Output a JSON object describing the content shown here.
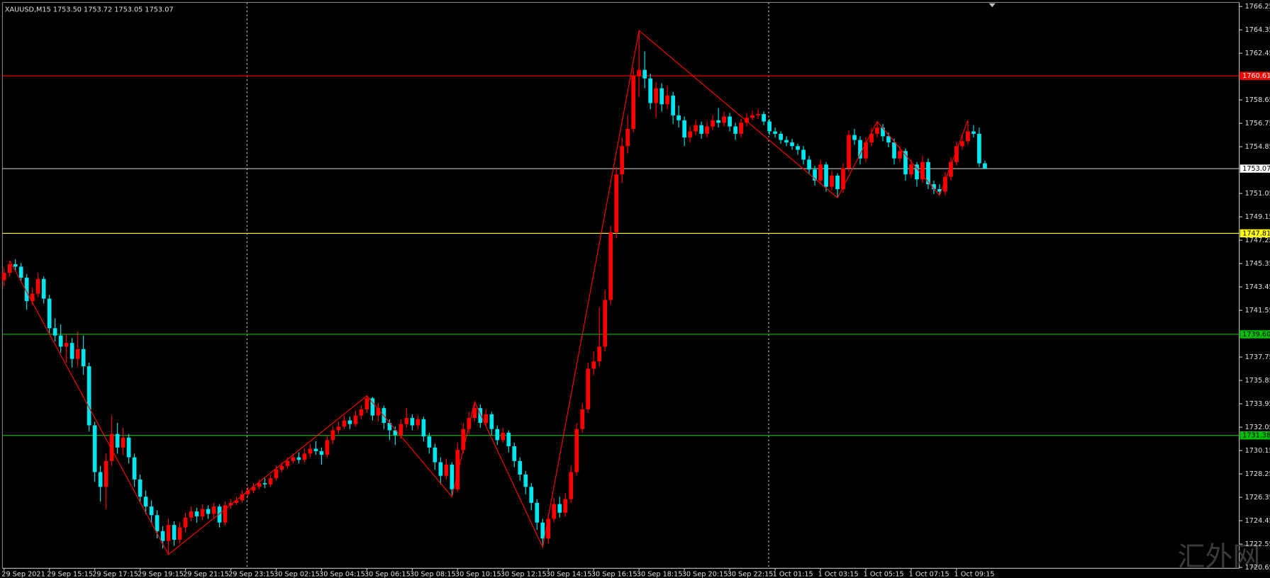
{
  "chart_data": {
    "type": "candlestick",
    "title": "XAUUSD,M15 1753.50 1753.72 1753.05 1753.07",
    "watermark": "汇外网",
    "up_color": "#ff0000",
    "down_color": "#00e5ee",
    "ylim": [
      1720.58,
      1766.58
    ],
    "yticks": [
      1766.25,
      1764.35,
      1762.45,
      1758.65,
      1756.75,
      1754.85,
      1751.05,
      1749.15,
      1747.25,
      1745.35,
      1743.45,
      1741.55,
      1737.75,
      1735.85,
      1733.95,
      1732.05,
      1730.15,
      1728.25,
      1726.35,
      1724.45,
      1722.55,
      1720.65
    ],
    "grid": false,
    "hlines": [
      {
        "value": 1760.61,
        "color": "#ff0000",
        "text_color": "#ffffff"
      },
      {
        "value": 1753.07,
        "color": "#ffffff",
        "text_color": "#000000"
      },
      {
        "value": 1747.81,
        "color": "#ffff00",
        "text_color": "#000000"
      },
      {
        "value": 1739.6,
        "label": "1739.60",
        "color": "#00c000",
        "text_color": "#000000"
      },
      {
        "value": 1731.38,
        "color": "#00c000",
        "text_color": "#000000"
      }
    ],
    "zigzag": {
      "color": "#ff0000",
      "x": [
        1,
        29,
        64,
        79,
        83,
        95,
        112,
        147,
        154,
        165,
        170
      ],
      "values": [
        1745.6,
        1721.7,
        1734.6,
        1726.4,
        1734.1,
        1722.3,
        1764.3,
        1750.7,
        1756.9,
        1750.9,
        1757.0
      ]
    },
    "categories": [
      "29 Sep 2021",
      null,
      null,
      null,
      null,
      null,
      null,
      null,
      "29 Sep 15:15",
      null,
      null,
      null,
      null,
      null,
      null,
      null,
      "29 Sep 17:15",
      null,
      null,
      null,
      null,
      null,
      null,
      null,
      "29 Sep 19:15",
      null,
      null,
      null,
      null,
      null,
      null,
      null,
      "29 Sep 21:15",
      null,
      null,
      null,
      null,
      null,
      null,
      null,
      "29 Sep 23:15",
      null,
      null,
      null,
      null,
      null,
      null,
      null,
      "30 Sep 02:15",
      null,
      null,
      null,
      null,
      null,
      null,
      null,
      "30 Sep 04:15",
      null,
      null,
      null,
      null,
      null,
      null,
      null,
      "30 Sep 06:15",
      null,
      null,
      null,
      null,
      null,
      null,
      null,
      "30 Sep 08:15",
      null,
      null,
      null,
      null,
      null,
      null,
      null,
      "30 Sep 10:15",
      null,
      null,
      null,
      null,
      null,
      null,
      null,
      "30 Sep 12:15",
      null,
      null,
      null,
      null,
      null,
      null,
      null,
      "30 Sep 14:15",
      null,
      null,
      null,
      null,
      null,
      null,
      null,
      "30 Sep 16:15",
      null,
      null,
      null,
      null,
      null,
      null,
      null,
      "30 Sep 18:15",
      null,
      null,
      null,
      null,
      null,
      null,
      null,
      "30 Sep 20:15",
      null,
      null,
      null,
      null,
      null,
      null,
      null,
      "30 Sep 22:15",
      null,
      null,
      null,
      null,
      null,
      null,
      null,
      "1 Oct 01:15",
      null,
      null,
      null,
      null,
      null,
      null,
      null,
      "1 Oct 03:15",
      null,
      null,
      null,
      null,
      null,
      null,
      null,
      "1 Oct 05:15",
      null,
      null,
      null,
      null,
      null,
      null,
      null,
      "1 Oct 07:15",
      null,
      null,
      null,
      null,
      null,
      null,
      null,
      "1 Oct 09:15",
      null,
      null,
      null,
      null,
      null
    ],
    "candles": [
      [
        1744.0,
        1745.0,
        1743.5,
        1744.6
      ],
      [
        1744.6,
        1745.6,
        1744.3,
        1745.3
      ],
      [
        1745.3,
        1745.7,
        1744.8,
        1745.1
      ],
      [
        1745.1,
        1745.4,
        1743.9,
        1744.2
      ],
      [
        1744.2,
        1744.5,
        1741.6,
        1742.3
      ],
      [
        1742.3,
        1743.4,
        1742.0,
        1742.9
      ],
      [
        1742.9,
        1744.6,
        1742.6,
        1744.1
      ],
      [
        1744.1,
        1744.3,
        1742.1,
        1742.5
      ],
      [
        1742.5,
        1742.8,
        1739.6,
        1740.1
      ],
      [
        1740.1,
        1740.9,
        1739.0,
        1739.5
      ],
      [
        1739.5,
        1740.4,
        1738.1,
        1738.6
      ],
      [
        1738.6,
        1739.6,
        1737.3,
        1738.9
      ],
      [
        1738.9,
        1739.3,
        1736.9,
        1737.6
      ],
      [
        1737.6,
        1739.8,
        1737.0,
        1738.4
      ],
      [
        1738.4,
        1739.5,
        1736.3,
        1737.0
      ],
      [
        1737.0,
        1737.3,
        1731.7,
        1732.2
      ],
      [
        1732.2,
        1732.5,
        1727.6,
        1728.4
      ],
      [
        1728.4,
        1728.9,
        1726.0,
        1727.2
      ],
      [
        1727.2,
        1729.9,
        1725.4,
        1729.3
      ],
      [
        1729.3,
        1733.0,
        1728.9,
        1731.5
      ],
      [
        1731.5,
        1732.4,
        1729.9,
        1730.4
      ],
      [
        1730.4,
        1732.0,
        1729.8,
        1731.2
      ],
      [
        1731.2,
        1731.5,
        1729.1,
        1729.6
      ],
      [
        1729.6,
        1729.9,
        1727.2,
        1727.8
      ],
      [
        1727.8,
        1728.2,
        1725.9,
        1726.4
      ],
      [
        1726.4,
        1726.9,
        1725.0,
        1725.6
      ],
      [
        1725.6,
        1726.1,
        1724.2,
        1724.9
      ],
      [
        1724.9,
        1725.3,
        1723.0,
        1723.6
      ],
      [
        1723.6,
        1724.0,
        1722.2,
        1722.8
      ],
      [
        1722.8,
        1724.6,
        1721.7,
        1724.1
      ],
      [
        1724.1,
        1724.4,
        1722.4,
        1722.9
      ],
      [
        1722.9,
        1724.3,
        1722.6,
        1723.9
      ],
      [
        1723.9,
        1725.1,
        1723.5,
        1724.7
      ],
      [
        1724.7,
        1725.6,
        1724.4,
        1725.2
      ],
      [
        1725.2,
        1725.5,
        1724.3,
        1724.8
      ],
      [
        1724.8,
        1725.8,
        1724.5,
        1725.4
      ],
      [
        1725.4,
        1725.7,
        1724.6,
        1725.0
      ],
      [
        1725.0,
        1725.9,
        1724.7,
        1725.6
      ],
      [
        1725.6,
        1725.8,
        1723.9,
        1724.3
      ],
      [
        1724.3,
        1726.0,
        1724.1,
        1725.7
      ],
      [
        1725.7,
        1726.2,
        1725.4,
        1725.9
      ],
      [
        1725.9,
        1726.4,
        1725.7,
        1726.1
      ],
      [
        1726.1,
        1726.9,
        1725.9,
        1726.6
      ],
      [
        1726.6,
        1727.2,
        1726.4,
        1726.9
      ],
      [
        1726.9,
        1727.5,
        1726.7,
        1727.2
      ],
      [
        1727.2,
        1727.8,
        1727.0,
        1727.5
      ],
      [
        1727.5,
        1727.9,
        1727.1,
        1727.4
      ],
      [
        1727.4,
        1728.2,
        1727.2,
        1727.9
      ],
      [
        1727.9,
        1728.9,
        1727.7,
        1728.6
      ],
      [
        1728.6,
        1729.2,
        1728.4,
        1728.9
      ],
      [
        1728.9,
        1729.6,
        1728.7,
        1729.3
      ],
      [
        1729.3,
        1729.9,
        1729.1,
        1729.6
      ],
      [
        1729.6,
        1730.0,
        1729.1,
        1729.4
      ],
      [
        1729.4,
        1730.3,
        1729.2,
        1729.9
      ],
      [
        1729.9,
        1730.7,
        1729.6,
        1730.3
      ],
      [
        1730.3,
        1730.9,
        1729.8,
        1730.1
      ],
      [
        1730.1,
        1730.4,
        1729.0,
        1729.8
      ],
      [
        1729.8,
        1731.4,
        1729.6,
        1731.0
      ],
      [
        1731.0,
        1732.1,
        1730.7,
        1731.8
      ],
      [
        1731.8,
        1732.5,
        1731.5,
        1732.1
      ],
      [
        1732.1,
        1733.0,
        1731.9,
        1732.6
      ],
      [
        1732.6,
        1732.9,
        1731.9,
        1732.3
      ],
      [
        1732.3,
        1733.4,
        1732.1,
        1733.0
      ],
      [
        1733.0,
        1733.8,
        1732.7,
        1733.5
      ],
      [
        1733.5,
        1734.6,
        1733.2,
        1734.4
      ],
      [
        1734.4,
        1734.5,
        1732.6,
        1733.0
      ],
      [
        1733.0,
        1734.0,
        1732.5,
        1733.6
      ],
      [
        1733.6,
        1733.8,
        1731.9,
        1732.4
      ],
      [
        1732.4,
        1732.7,
        1731.0,
        1731.8
      ],
      [
        1731.8,
        1732.1,
        1730.6,
        1731.4
      ],
      [
        1731.4,
        1732.7,
        1731.1,
        1732.3
      ],
      [
        1732.3,
        1733.6,
        1732.0,
        1732.8
      ],
      [
        1732.8,
        1733.1,
        1731.8,
        1732.2
      ],
      [
        1732.2,
        1733.0,
        1731.9,
        1732.7
      ],
      [
        1732.7,
        1732.9,
        1730.9,
        1731.3
      ],
      [
        1731.3,
        1731.6,
        1729.9,
        1730.4
      ],
      [
        1730.4,
        1730.7,
        1728.6,
        1729.2
      ],
      [
        1729.2,
        1729.6,
        1727.4,
        1728.1
      ],
      [
        1728.1,
        1729.5,
        1727.8,
        1729.0
      ],
      [
        1729.0,
        1729.2,
        1726.4,
        1727.0
      ],
      [
        1727.0,
        1730.8,
        1726.8,
        1730.2
      ],
      [
        1730.2,
        1732.4,
        1729.9,
        1731.9
      ],
      [
        1731.9,
        1733.3,
        1731.5,
        1732.8
      ],
      [
        1732.8,
        1734.1,
        1732.5,
        1733.6
      ],
      [
        1733.6,
        1733.9,
        1732.0,
        1732.4
      ],
      [
        1732.4,
        1733.5,
        1732.1,
        1733.1
      ],
      [
        1733.1,
        1733.3,
        1731.4,
        1731.9
      ],
      [
        1731.9,
        1732.2,
        1730.6,
        1731.0
      ],
      [
        1731.0,
        1732.0,
        1730.8,
        1731.6
      ],
      [
        1731.6,
        1731.8,
        1730.0,
        1730.5
      ],
      [
        1730.5,
        1730.8,
        1728.8,
        1729.3
      ],
      [
        1729.3,
        1729.6,
        1727.7,
        1728.2
      ],
      [
        1728.2,
        1728.5,
        1726.6,
        1727.2
      ],
      [
        1727.2,
        1727.5,
        1725.3,
        1725.9
      ],
      [
        1725.9,
        1726.2,
        1723.7,
        1724.3
      ],
      [
        1724.3,
        1724.6,
        1722.3,
        1723.0
      ],
      [
        1723.0,
        1725.0,
        1722.6,
        1724.6
      ],
      [
        1724.6,
        1726.3,
        1724.3,
        1725.8
      ],
      [
        1725.8,
        1726.4,
        1724.7,
        1725.1
      ],
      [
        1725.1,
        1726.7,
        1724.8,
        1726.2
      ],
      [
        1726.2,
        1728.9,
        1725.9,
        1728.4
      ],
      [
        1728.4,
        1732.4,
        1728.1,
        1731.9
      ],
      [
        1731.9,
        1734.0,
        1731.6,
        1733.5
      ],
      [
        1733.5,
        1737.3,
        1733.2,
        1736.8
      ],
      [
        1736.8,
        1738.2,
        1736.3,
        1737.4
      ],
      [
        1737.4,
        1741.8,
        1737.0,
        1738.6
      ],
      [
        1738.6,
        1743.2,
        1738.2,
        1742.4
      ],
      [
        1742.4,
        1748.4,
        1742.0,
        1747.9
      ],
      [
        1747.9,
        1753.2,
        1747.4,
        1752.6
      ],
      [
        1752.6,
        1755.6,
        1751.9,
        1754.9
      ],
      [
        1754.9,
        1757.4,
        1754.3,
        1756.3
      ],
      [
        1756.3,
        1761.3,
        1756.0,
        1760.6
      ],
      [
        1760.6,
        1764.3,
        1758.9,
        1761.1
      ],
      [
        1761.1,
        1762.6,
        1759.6,
        1760.4
      ],
      [
        1760.4,
        1760.8,
        1757.9,
        1758.4
      ],
      [
        1758.4,
        1760.1,
        1757.2,
        1759.6
      ],
      [
        1759.6,
        1760.0,
        1757.7,
        1758.3
      ],
      [
        1758.3,
        1759.8,
        1757.9,
        1759.0
      ],
      [
        1759.0,
        1759.3,
        1756.7,
        1757.4
      ],
      [
        1757.4,
        1758.2,
        1756.4,
        1757.0
      ],
      [
        1757.0,
        1757.3,
        1754.9,
        1755.6
      ],
      [
        1755.6,
        1756.5,
        1755.2,
        1756.1
      ],
      [
        1756.1,
        1757.0,
        1755.8,
        1756.6
      ],
      [
        1756.6,
        1756.9,
        1755.5,
        1755.9
      ],
      [
        1755.9,
        1756.9,
        1755.6,
        1756.5
      ],
      [
        1756.5,
        1757.4,
        1756.2,
        1757.0
      ],
      [
        1757.0,
        1758.0,
        1756.4,
        1756.8
      ],
      [
        1756.8,
        1757.7,
        1756.5,
        1757.3
      ],
      [
        1757.3,
        1757.6,
        1756.1,
        1756.5
      ],
      [
        1756.5,
        1756.8,
        1755.4,
        1755.9
      ],
      [
        1755.9,
        1757.1,
        1755.6,
        1756.8
      ],
      [
        1756.8,
        1757.6,
        1756.5,
        1757.2
      ],
      [
        1757.2,
        1757.8,
        1757.0,
        1757.4
      ],
      [
        1757.4,
        1757.9,
        1757.1,
        1757.5
      ],
      [
        1757.5,
        1757.7,
        1756.6,
        1756.9
      ],
      [
        1756.9,
        1757.1,
        1755.8,
        1756.1
      ],
      [
        1756.1,
        1756.4,
        1755.6,
        1755.9
      ],
      [
        1755.9,
        1756.1,
        1755.1,
        1755.4
      ],
      [
        1755.4,
        1755.7,
        1754.9,
        1755.2
      ],
      [
        1755.2,
        1755.5,
        1754.6,
        1754.9
      ],
      [
        1754.9,
        1755.1,
        1754.2,
        1754.6
      ],
      [
        1754.6,
        1754.9,
        1753.4,
        1753.8
      ],
      [
        1753.8,
        1754.1,
        1752.6,
        1753.0
      ],
      [
        1753.0,
        1753.3,
        1751.7,
        1752.1
      ],
      [
        1752.1,
        1753.8,
        1751.8,
        1753.4
      ],
      [
        1753.4,
        1753.6,
        1751.2,
        1751.6
      ],
      [
        1751.6,
        1752.9,
        1751.3,
        1752.5
      ],
      [
        1752.5,
        1752.7,
        1750.7,
        1751.4
      ],
      [
        1751.4,
        1753.5,
        1751.1,
        1753.1
      ],
      [
        1753.1,
        1756.2,
        1752.8,
        1755.8
      ],
      [
        1755.8,
        1756.3,
        1755.0,
        1755.4
      ],
      [
        1755.4,
        1755.7,
        1753.4,
        1753.9
      ],
      [
        1753.9,
        1755.6,
        1753.6,
        1755.2
      ],
      [
        1755.2,
        1756.4,
        1754.9,
        1755.9
      ],
      [
        1755.9,
        1756.9,
        1755.6,
        1756.4
      ],
      [
        1756.4,
        1756.7,
        1755.3,
        1755.7
      ],
      [
        1755.7,
        1756.0,
        1754.8,
        1755.2
      ],
      [
        1755.2,
        1755.5,
        1753.4,
        1753.9
      ],
      [
        1753.9,
        1754.9,
        1753.6,
        1754.5
      ],
      [
        1754.5,
        1754.7,
        1752.1,
        1752.6
      ],
      [
        1752.6,
        1753.8,
        1752.3,
        1753.4
      ],
      [
        1753.4,
        1753.6,
        1751.6,
        1752.2
      ],
      [
        1752.2,
        1754.1,
        1751.9,
        1753.6
      ],
      [
        1753.6,
        1753.9,
        1751.4,
        1751.8
      ],
      [
        1751.8,
        1752.1,
        1751.0,
        1751.4
      ],
      [
        1751.4,
        1751.8,
        1750.9,
        1751.2
      ],
      [
        1751.2,
        1752.8,
        1750.9,
        1752.4
      ],
      [
        1752.4,
        1754.0,
        1752.1,
        1753.6
      ],
      [
        1753.6,
        1755.3,
        1753.3,
        1754.9
      ],
      [
        1754.9,
        1755.9,
        1754.6,
        1755.3
      ],
      [
        1755.3,
        1757.0,
        1755.0,
        1756.1
      ],
      [
        1756.1,
        1756.6,
        1755.6,
        1755.9
      ],
      [
        1755.9,
        1756.4,
        1753.2,
        1753.5
      ],
      [
        1753.5,
        1753.72,
        1753.05,
        1753.07
      ]
    ]
  }
}
